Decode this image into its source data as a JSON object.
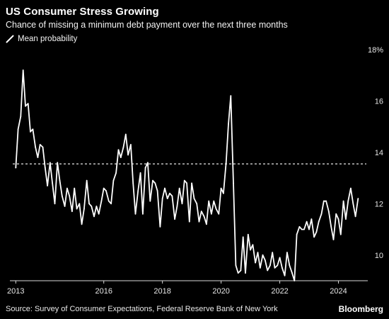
{
  "header": {
    "title": "US Consumer Stress Growing",
    "subtitle": "Chance of missing a minimum debt payment over the next three months"
  },
  "legend": {
    "label": "Mean probability"
  },
  "footer": {
    "source": "Source: Survey of Consumer Expectations, Federal Reserve Bank of New York",
    "brand": "Bloomberg"
  },
  "colors": {
    "background": "#000000",
    "line": "#ffffff",
    "reference_line": "#ffffff",
    "axis": "#d9d9d9"
  },
  "chart_data": {
    "type": "line",
    "title": "US Consumer Stress Growing",
    "subtitle": "Chance of missing a minimum debt payment over the next three months",
    "xlabel": "",
    "ylabel": "",
    "x_ticks": [
      2013,
      2016,
      2018,
      2020,
      2022,
      2024
    ],
    "y_ticks": [
      10,
      12,
      14,
      16,
      18
    ],
    "y_tick_labels": [
      "10",
      "12",
      "14",
      "16",
      "18%"
    ],
    "xlim": [
      2012.8,
      2025.0
    ],
    "ylim": [
      9.0,
      18.0
    ],
    "grid": false,
    "legend_position": "top-left",
    "reference_line": {
      "value": 13.55,
      "style": "dashed"
    },
    "series": [
      {
        "name": "Mean probability",
        "x": [
          2013.0,
          2013.08,
          2013.17,
          2013.25,
          2013.33,
          2013.42,
          2013.5,
          2013.58,
          2013.67,
          2013.75,
          2013.83,
          2013.92,
          2014.0,
          2014.08,
          2014.17,
          2014.25,
          2014.33,
          2014.42,
          2014.5,
          2014.58,
          2014.67,
          2014.75,
          2014.83,
          2014.92,
          2015.0,
          2015.08,
          2015.17,
          2015.25,
          2015.33,
          2015.42,
          2015.5,
          2015.58,
          2015.67,
          2015.75,
          2015.83,
          2015.92,
          2016.0,
          2016.08,
          2016.17,
          2016.25,
          2016.33,
          2016.42,
          2016.5,
          2016.58,
          2016.67,
          2016.75,
          2016.83,
          2016.92,
          2017.0,
          2017.08,
          2017.17,
          2017.25,
          2017.33,
          2017.42,
          2017.5,
          2017.58,
          2017.67,
          2017.75,
          2017.83,
          2017.92,
          2018.0,
          2018.08,
          2018.17,
          2018.25,
          2018.33,
          2018.42,
          2018.5,
          2018.58,
          2018.67,
          2018.75,
          2018.83,
          2018.92,
          2019.0,
          2019.08,
          2019.17,
          2019.25,
          2019.33,
          2019.42,
          2019.5,
          2019.58,
          2019.67,
          2019.75,
          2019.83,
          2019.92,
          2020.0,
          2020.08,
          2020.17,
          2020.25,
          2020.33,
          2020.42,
          2020.5,
          2020.58,
          2020.67,
          2020.75,
          2020.83,
          2020.92,
          2021.0,
          2021.08,
          2021.17,
          2021.25,
          2021.33,
          2021.42,
          2021.5,
          2021.58,
          2021.67,
          2021.75,
          2021.83,
          2021.92,
          2022.0,
          2022.08,
          2022.17,
          2022.25,
          2022.33,
          2022.42,
          2022.5,
          2022.58,
          2022.67,
          2022.75,
          2022.83,
          2022.92,
          2023.0,
          2023.08,
          2023.17,
          2023.25,
          2023.33,
          2023.42,
          2023.5,
          2023.58,
          2023.67,
          2023.75,
          2023.83,
          2023.92,
          2024.0,
          2024.08,
          2024.17,
          2024.25,
          2024.33,
          2024.42,
          2024.5,
          2024.58,
          2024.67
        ],
        "y": [
          13.4,
          14.9,
          15.4,
          17.2,
          15.8,
          15.9,
          14.8,
          14.9,
          14.2,
          13.8,
          14.3,
          14.2,
          13.4,
          12.7,
          13.6,
          12.8,
          12.0,
          13.6,
          12.9,
          12.3,
          11.9,
          12.6,
          12.3,
          11.7,
          12.6,
          11.8,
          12.0,
          11.2,
          11.8,
          12.9,
          12.0,
          11.9,
          11.5,
          11.9,
          11.6,
          12.1,
          12.6,
          12.5,
          12.1,
          12.0,
          12.9,
          13.2,
          14.1,
          13.8,
          14.2,
          14.7,
          13.9,
          14.3,
          12.8,
          11.6,
          12.5,
          13.2,
          11.6,
          13.4,
          13.6,
          12.1,
          12.9,
          12.8,
          12.5,
          11.1,
          12.2,
          12.6,
          12.2,
          12.4,
          12.3,
          11.4,
          11.9,
          12.6,
          12.0,
          12.9,
          12.8,
          11.3,
          12.8,
          12.2,
          12.0,
          11.3,
          11.7,
          11.5,
          11.2,
          12.1,
          11.6,
          12.1,
          11.8,
          11.6,
          12.6,
          12.4,
          13.6,
          15.1,
          16.2,
          12.8,
          9.6,
          9.3,
          9.4,
          10.7,
          9.3,
          10.8,
          10.2,
          10.4,
          9.7,
          10.1,
          9.5,
          10.0,
          9.8,
          9.4,
          9.6,
          10.1,
          9.5,
          9.6,
          9.9,
          9.5,
          9.2,
          10.1,
          9.6,
          9.3,
          9.0,
          10.8,
          11.1,
          11.0,
          11.0,
          11.3,
          11.0,
          11.4,
          10.7,
          10.9,
          11.3,
          11.6,
          12.1,
          12.1,
          11.7,
          11.1,
          10.6,
          11.6,
          11.4,
          10.8,
          12.1,
          11.4,
          12.1,
          12.6,
          12.0,
          11.5,
          12.2
        ]
      }
    ]
  }
}
